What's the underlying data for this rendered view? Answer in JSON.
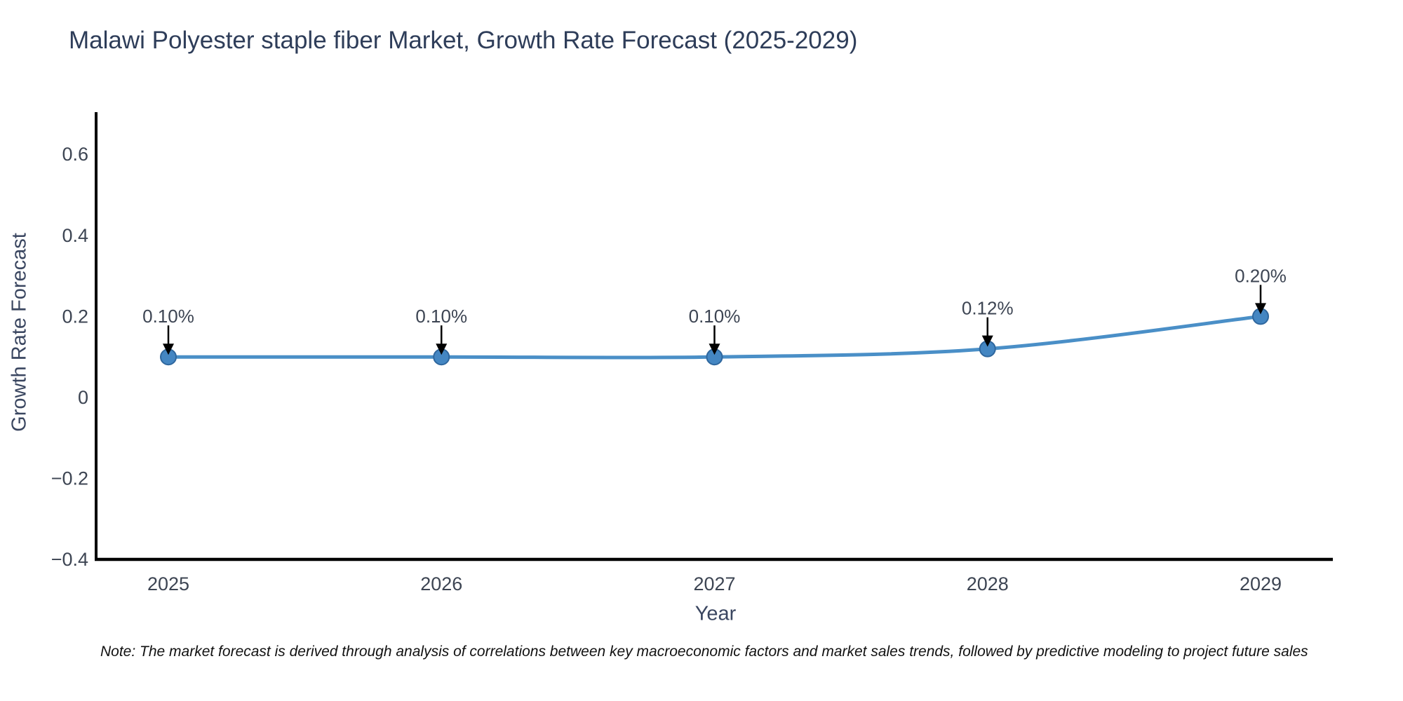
{
  "page": {
    "background": "#ffffff"
  },
  "chart_data": {
    "type": "line",
    "title": "Malawi Polyester staple fiber Market, Growth Rate Forecast (2025-2029)",
    "xlabel": "Year",
    "ylabel": "Growth Rate Forecast",
    "categories": [
      "2025",
      "2026",
      "2027",
      "2028",
      "2029"
    ],
    "series": [
      {
        "name": "Growth Rate Forecast",
        "values": [
          0.1,
          0.1,
          0.1,
          0.12,
          0.2
        ]
      }
    ],
    "point_labels": [
      "0.10%",
      "0.10%",
      "0.10%",
      "0.12%",
      "0.20%"
    ],
    "yticks": [
      {
        "label": "0.6",
        "value": 0.6
      },
      {
        "label": "0.4",
        "value": 0.4
      },
      {
        "label": "0.2",
        "value": 0.2
      },
      {
        "label": "0",
        "value": 0
      },
      {
        "label": "−0.2",
        "value": -0.2
      },
      {
        "label": "−0.4",
        "value": -0.4
      }
    ],
    "ylim": [
      -0.4,
      0.705
    ],
    "grid": false,
    "legend": false,
    "colors": {
      "line": "#4a8fc7",
      "marker_fill": "#4486c2",
      "marker_edge": "#2f679e",
      "arrow": "#000000",
      "axis": "#000000",
      "title_text": "#2e3d59",
      "tick_text": "#3d4553",
      "note_text": "#111111"
    }
  },
  "note": "Note: The market forecast is derived through analysis of correlations between key macroeconomic factors and market sales trends, followed by predictive modeling to project future sales"
}
